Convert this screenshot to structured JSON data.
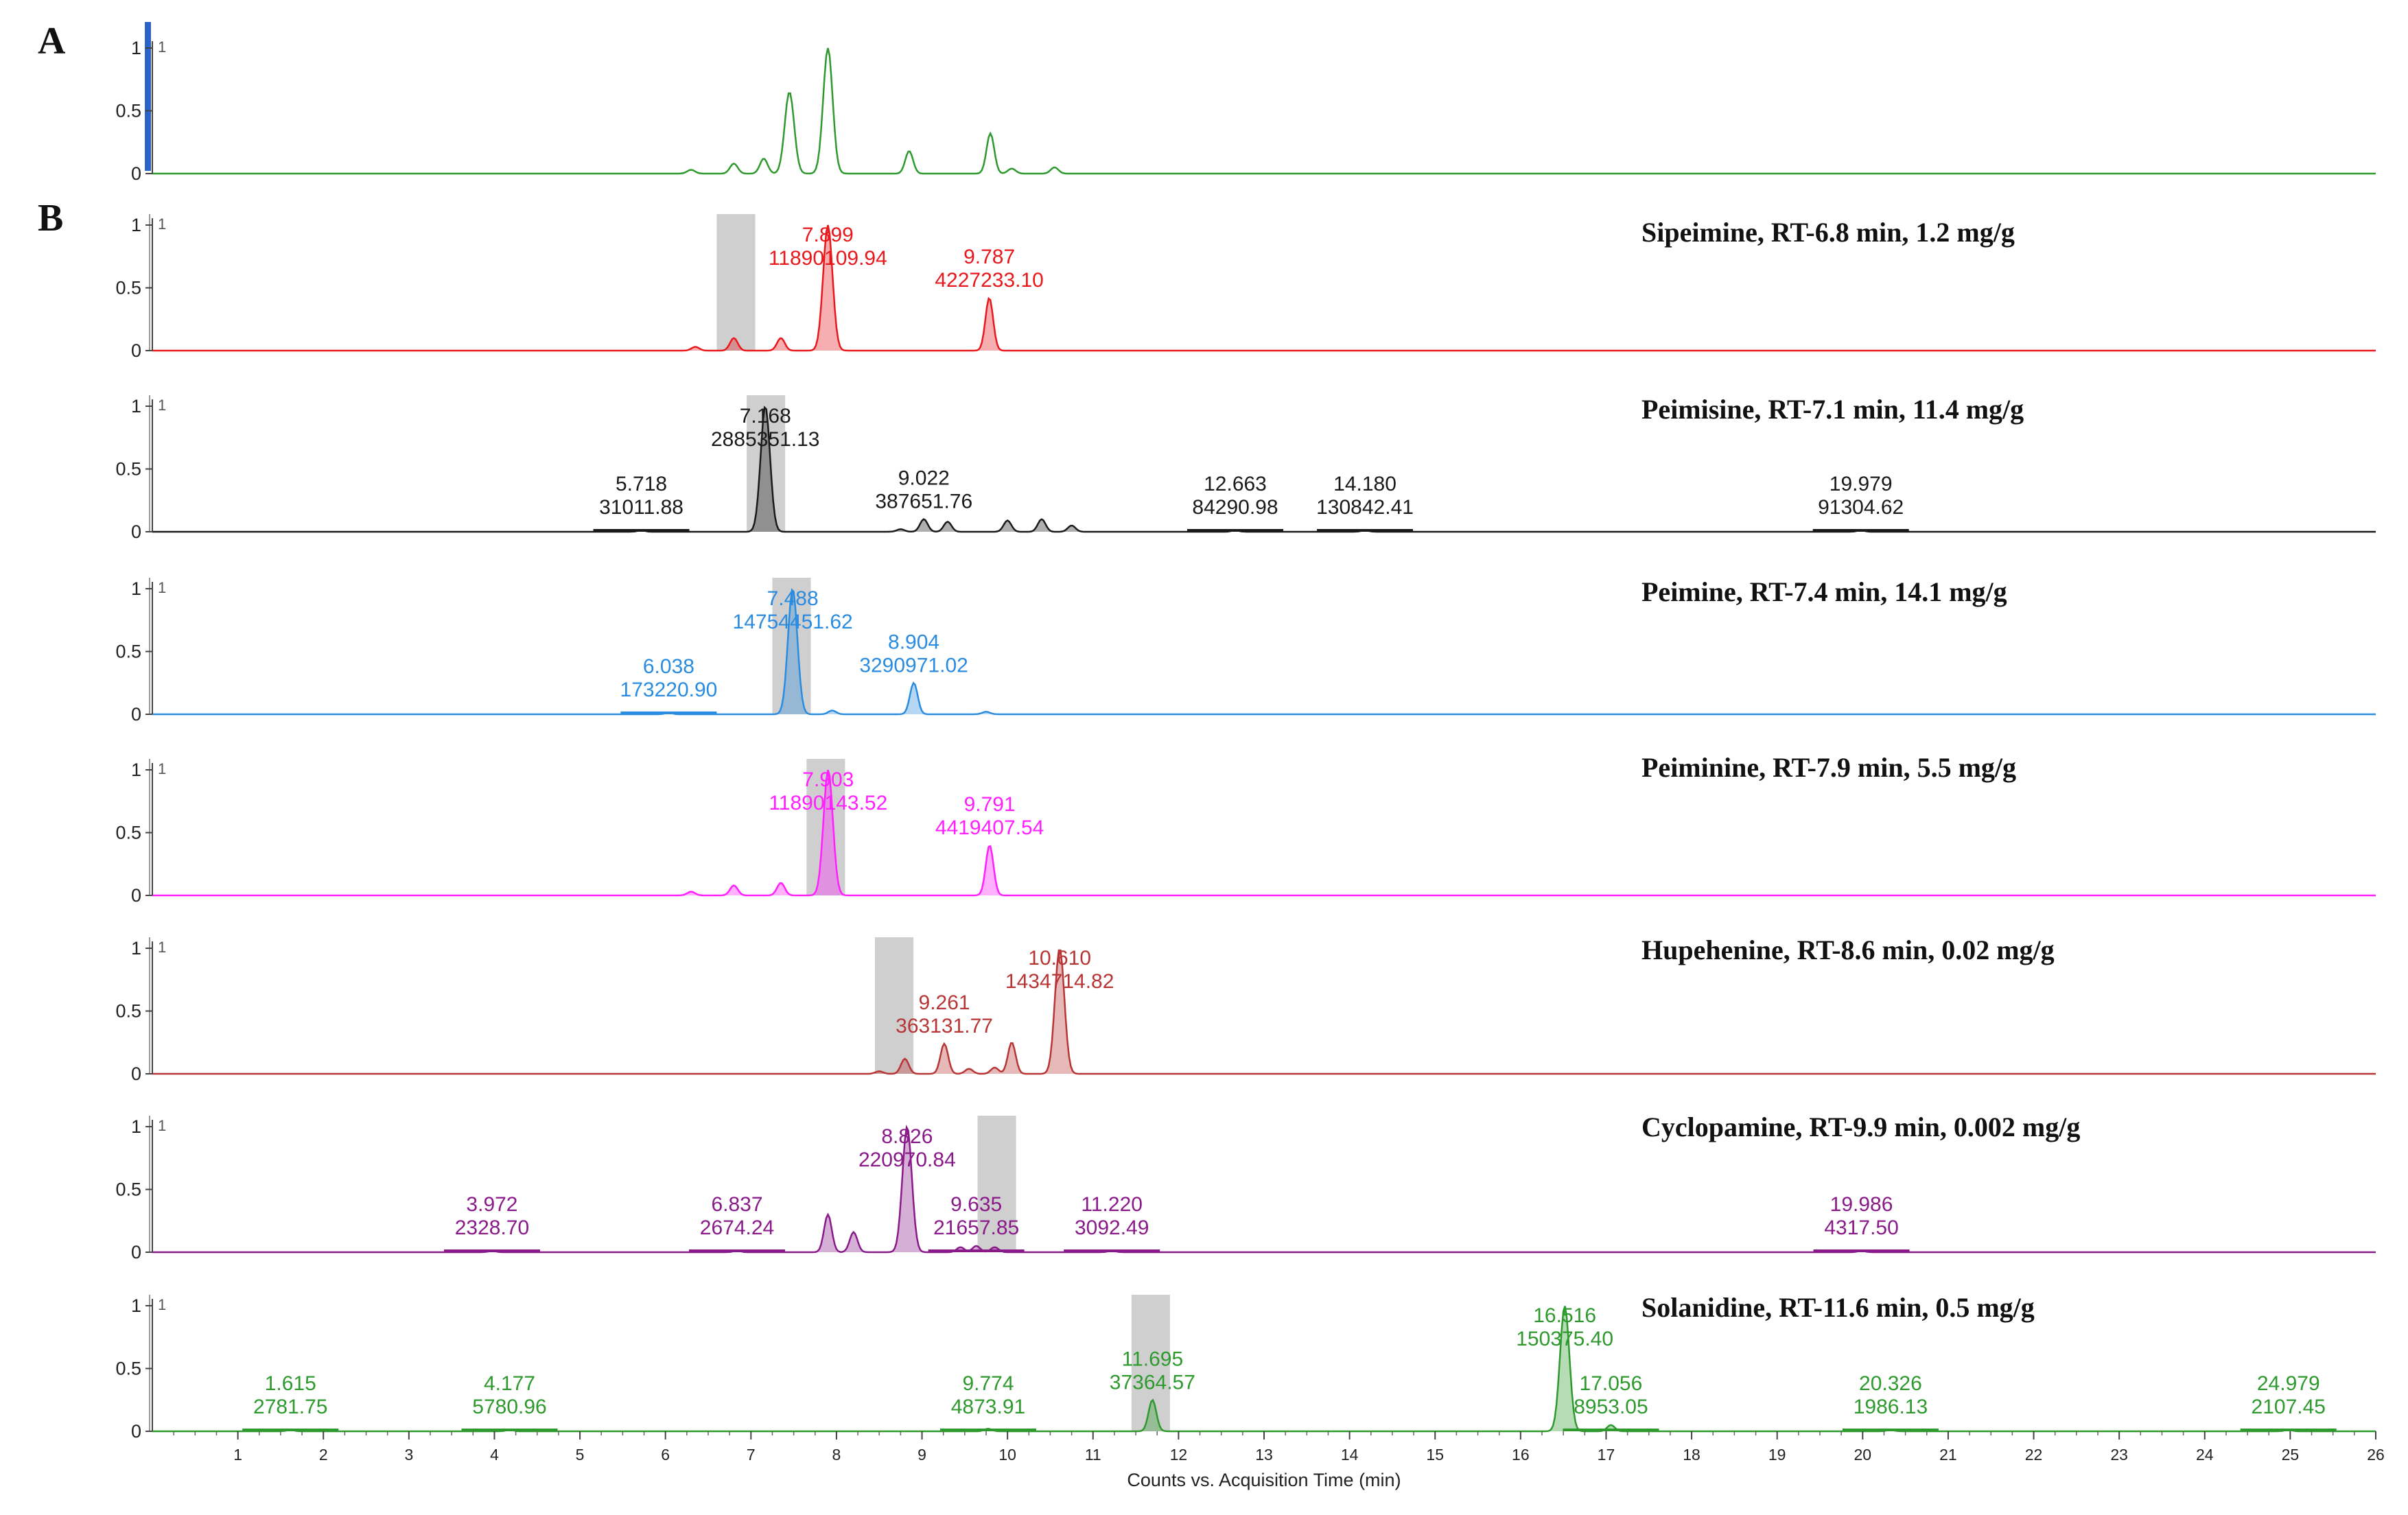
{
  "chart_data": {
    "type": "line",
    "figure_title": "",
    "xlabel": "Counts vs. Acquisition Time (min)",
    "xlim": [
      0,
      26
    ],
    "x_ticks": [
      "1",
      "2",
      "3",
      "4",
      "5",
      "6",
      "7",
      "8",
      "9",
      "10",
      "11",
      "12",
      "13",
      "14",
      "15",
      "16",
      "17",
      "18",
      "19",
      "20",
      "21",
      "22",
      "23",
      "24",
      "25",
      "26"
    ],
    "y_ticks": [
      "0",
      "0.5",
      "1"
    ],
    "panels": [
      {
        "label": "A",
        "title": "",
        "tag": "1",
        "color": "#2e9a2e",
        "fill": false,
        "ylim": [
          0,
          1
        ],
        "peaks": [
          [
            6.3,
            0.03
          ],
          [
            6.8,
            0.08
          ],
          [
            7.15,
            0.12
          ],
          [
            7.45,
            0.65
          ],
          [
            7.9,
            1.0
          ],
          [
            8.85,
            0.18
          ],
          [
            9.8,
            0.32
          ],
          [
            10.05,
            0.04
          ],
          [
            10.55,
            0.05
          ]
        ],
        "annotations": [],
        "highlight": null
      },
      {
        "label": "B",
        "title": "Sipeimine, RT-6.8 min, 1.2 mg/g",
        "tag": "1",
        "color": "#e8181c",
        "fill": true,
        "ylim": [
          0,
          1
        ],
        "peaks": [
          [
            6.35,
            0.03
          ],
          [
            6.8,
            0.1
          ],
          [
            7.35,
            0.1
          ],
          [
            7.899,
            1.0
          ],
          [
            9.787,
            0.42
          ]
        ],
        "annotations": [
          {
            "x": 7.899,
            "rt": "7.899",
            "area": "11890109.94"
          },
          {
            "x": 9.787,
            "rt": "9.787",
            "area": "4227233.10"
          }
        ],
        "highlight": [
          6.6,
          7.05
        ]
      },
      {
        "label": "",
        "title": "Peimisine, RT-7.1 min, 11.4 mg/g",
        "tag": "1",
        "color": "#1a1a1a",
        "fill": true,
        "ylim": [
          0,
          1
        ],
        "peaks": [
          [
            5.718,
            0.01
          ],
          [
            7.168,
            1.0
          ],
          [
            8.75,
            0.02
          ],
          [
            9.022,
            0.1
          ],
          [
            9.3,
            0.08
          ],
          [
            10.0,
            0.09
          ],
          [
            10.4,
            0.1
          ],
          [
            10.75,
            0.05
          ],
          [
            12.663,
            0.01
          ],
          [
            14.18,
            0.01
          ],
          [
            19.979,
            0.01
          ]
        ],
        "annotations": [
          {
            "x": 5.718,
            "rt": "5.718",
            "area": "31011.88"
          },
          {
            "x": 7.168,
            "rt": "7.168",
            "area": "2885351.13"
          },
          {
            "x": 9.022,
            "rt": "9.022",
            "area": "387651.76"
          },
          {
            "x": 12.663,
            "rt": "12.663",
            "area": "84290.98"
          },
          {
            "x": 14.18,
            "rt": "14.180",
            "area": "130842.41"
          },
          {
            "x": 19.979,
            "rt": "19.979",
            "area": "91304.62"
          }
        ],
        "highlight": [
          6.95,
          7.4
        ]
      },
      {
        "label": "",
        "title": "Peimine, RT-7.4 min, 14.1 mg/g",
        "tag": "1",
        "color": "#2a8ce0",
        "fill": true,
        "ylim": [
          0,
          1
        ],
        "peaks": [
          [
            6.038,
            0.01
          ],
          [
            7.488,
            1.0
          ],
          [
            7.95,
            0.03
          ],
          [
            8.904,
            0.25
          ],
          [
            9.75,
            0.02
          ]
        ],
        "annotations": [
          {
            "x": 6.038,
            "rt": "6.038",
            "area": "173220.90"
          },
          {
            "x": 7.488,
            "rt": "7.488",
            "area": "14754451.62"
          },
          {
            "x": 8.904,
            "rt": "8.904",
            "area": "3290971.02"
          }
        ],
        "highlight": [
          7.25,
          7.7
        ]
      },
      {
        "label": "",
        "title": "Peiminine, RT-7.9 min, 5.5 mg/g",
        "tag": "1",
        "color": "#ff1fff",
        "fill": true,
        "ylim": [
          0,
          1
        ],
        "peaks": [
          [
            6.3,
            0.03
          ],
          [
            6.8,
            0.08
          ],
          [
            7.35,
            0.1
          ],
          [
            7.903,
            1.0
          ],
          [
            9.791,
            0.4
          ]
        ],
        "annotations": [
          {
            "x": 7.903,
            "rt": "7.903",
            "area": "11890143.52"
          },
          {
            "x": 9.791,
            "rt": "9.791",
            "area": "4419407.54"
          }
        ],
        "highlight": [
          7.65,
          8.1
        ]
      },
      {
        "label": "",
        "title": "Hupehenine, RT-8.6 min, 0.02 mg/g",
        "tag": "1",
        "color": "#b83535",
        "fill": true,
        "ylim": [
          0,
          1
        ],
        "peaks": [
          [
            8.5,
            0.02
          ],
          [
            8.8,
            0.12
          ],
          [
            9.261,
            0.24
          ],
          [
            9.55,
            0.04
          ],
          [
            9.85,
            0.05
          ],
          [
            10.05,
            0.25
          ],
          [
            10.61,
            1.0
          ]
        ],
        "annotations": [
          {
            "x": 9.261,
            "rt": "9.261",
            "area": "363131.77"
          },
          {
            "x": 10.61,
            "rt": "10.610",
            "area": "1434714.82"
          }
        ],
        "highlight": [
          8.45,
          8.9
        ]
      },
      {
        "label": "",
        "title": "Cyclopamine,  RT-9.9 min, 0.002 mg/g",
        "tag": "1",
        "color": "#8a1a8a",
        "fill": true,
        "ylim": [
          0,
          1
        ],
        "peaks": [
          [
            3.972,
            0.01
          ],
          [
            6.837,
            0.01
          ],
          [
            7.9,
            0.3
          ],
          [
            8.2,
            0.16
          ],
          [
            8.826,
            1.0
          ],
          [
            9.45,
            0.04
          ],
          [
            9.635,
            0.05
          ],
          [
            9.85,
            0.04
          ],
          [
            11.22,
            0.01
          ],
          [
            19.986,
            0.01
          ]
        ],
        "annotations": [
          {
            "x": 3.972,
            "rt": "3.972",
            "area": "2328.70"
          },
          {
            "x": 6.837,
            "rt": "6.837",
            "area": "2674.24"
          },
          {
            "x": 8.826,
            "rt": "8.826",
            "area": "220970.84"
          },
          {
            "x": 9.635,
            "rt": "9.635",
            "area": "21657.85"
          },
          {
            "x": 11.22,
            "rt": "11.220",
            "area": "3092.49"
          },
          {
            "x": 19.986,
            "rt": "19.986",
            "area": "4317.50"
          }
        ],
        "highlight": [
          9.65,
          10.1
        ]
      },
      {
        "label": "",
        "title": "Solanidine, RT-11.6 min, 0.5 mg/g",
        "tag": "1",
        "color": "#2e9a2e",
        "fill": true,
        "ylim": [
          0,
          1
        ],
        "peaks": [
          [
            1.615,
            0.01
          ],
          [
            4.177,
            0.01
          ],
          [
            9.774,
            0.02
          ],
          [
            11.695,
            0.25
          ],
          [
            16.516,
            1.0
          ],
          [
            17.056,
            0.05
          ],
          [
            20.326,
            0.01
          ],
          [
            24.979,
            0.01
          ]
        ],
        "annotations": [
          {
            "x": 1.615,
            "rt": "1.615",
            "area": "2781.75"
          },
          {
            "x": 4.177,
            "rt": "4.177",
            "area": "5780.96"
          },
          {
            "x": 9.774,
            "rt": "9.774",
            "area": "4873.91"
          },
          {
            "x": 11.695,
            "rt": "11.695",
            "area": "37364.57"
          },
          {
            "x": 16.516,
            "rt": "16.516",
            "area": "150375.40"
          },
          {
            "x": 17.056,
            "rt": "17.056",
            "area": "8953.05"
          },
          {
            "x": 20.326,
            "rt": "20.326",
            "area": "1986.13"
          },
          {
            "x": 24.979,
            "rt": "24.979",
            "area": "2107.45"
          }
        ],
        "highlight": [
          11.45,
          11.9
        ]
      }
    ]
  }
}
